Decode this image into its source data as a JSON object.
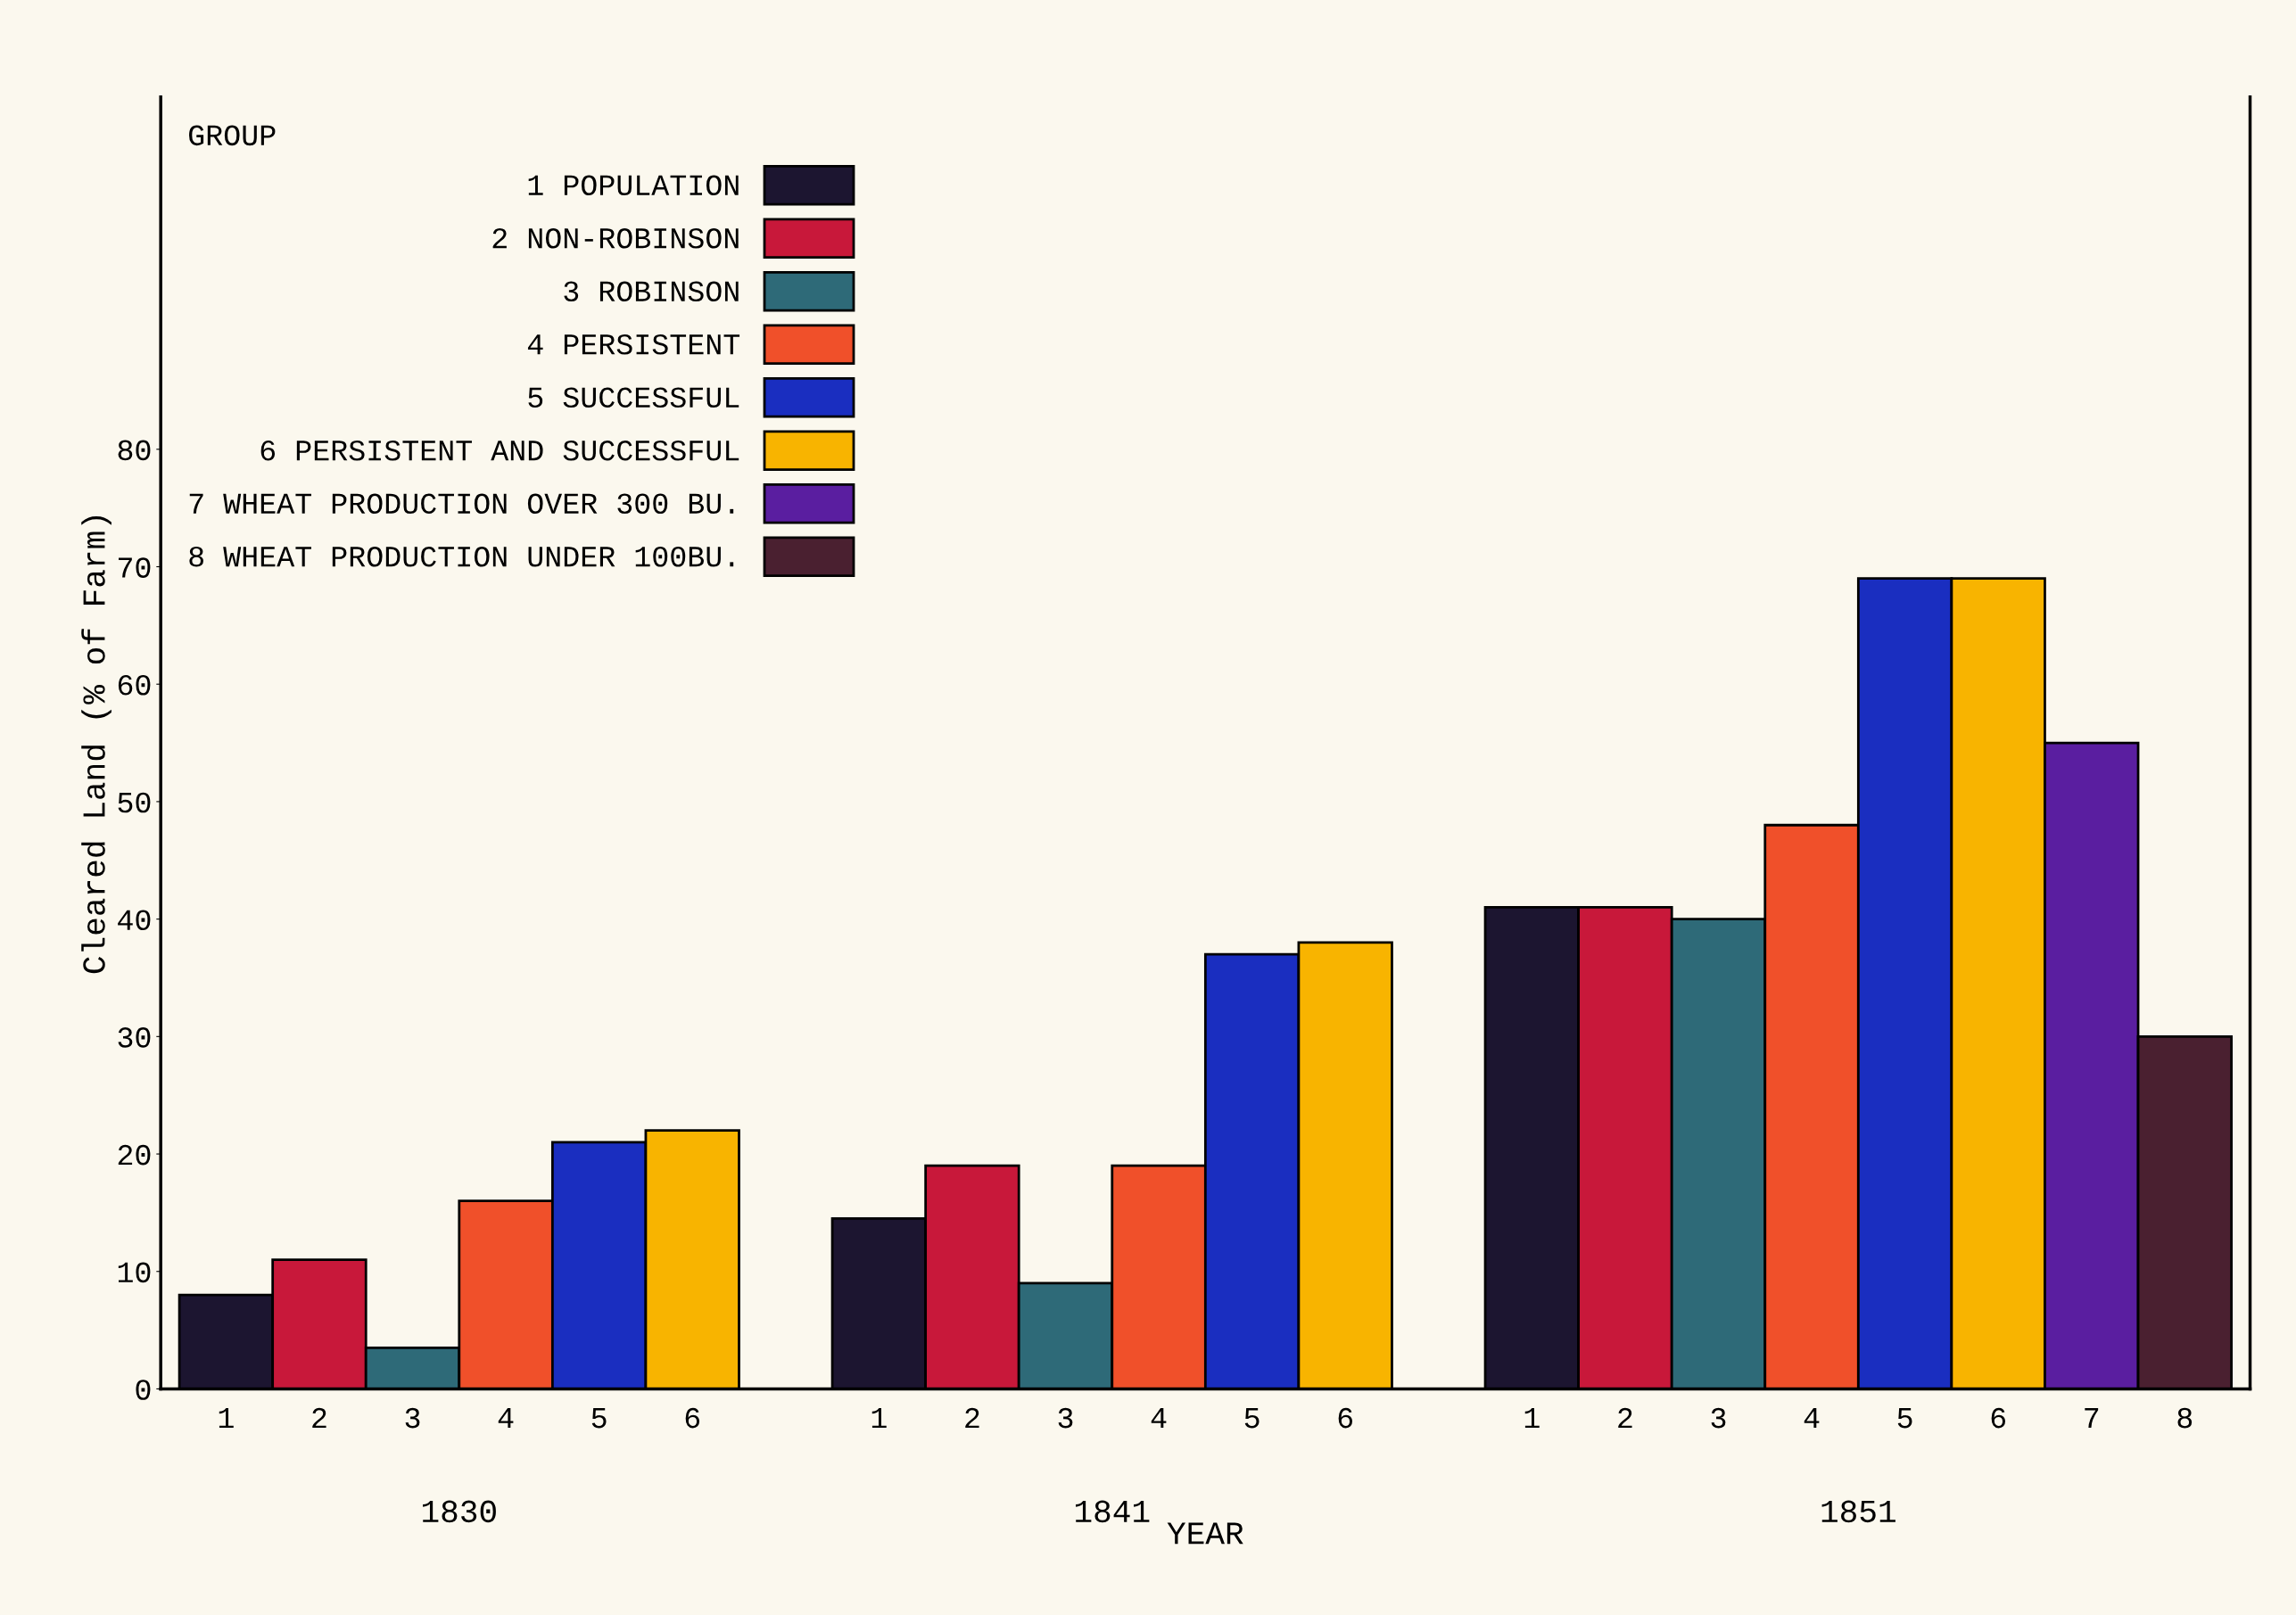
{
  "chart_data": {
    "type": "bar",
    "xlabel": "YEAR",
    "ylabel": "Cleared Land (% of Farm)",
    "legend_title": "GROUP",
    "categories": [
      "1",
      "2",
      "3",
      "4",
      "5",
      "6",
      null,
      "1",
      "2",
      "3",
      "4",
      "5",
      "6",
      null,
      "1",
      "2",
      "3",
      "4",
      "5",
      "6",
      "7",
      "8"
    ],
    "series": [
      {
        "name": "1 POPULATION",
        "color": "#1c1530",
        "values": [
          8,
          null,
          null,
          null,
          null,
          null,
          null,
          14.5,
          null,
          null,
          null,
          null,
          null,
          null,
          41,
          null,
          null,
          null,
          null,
          null,
          null,
          null
        ]
      },
      {
        "name": "2 NON-ROBINSON",
        "color": "#c8183a",
        "values": [
          null,
          11,
          null,
          null,
          null,
          null,
          null,
          null,
          19,
          null,
          null,
          null,
          null,
          null,
          null,
          41,
          null,
          null,
          null,
          null,
          null,
          null
        ]
      },
      {
        "name": "3 ROBINSON",
        "color": "#2e6a78",
        "values": [
          null,
          null,
          3.5,
          null,
          null,
          null,
          null,
          null,
          null,
          9,
          null,
          null,
          null,
          null,
          null,
          null,
          40,
          null,
          null,
          null,
          null,
          null
        ]
      },
      {
        "name": "4 PERSISTENT",
        "color": "#f0502a",
        "values": [
          null,
          null,
          null,
          16,
          null,
          null,
          null,
          null,
          null,
          null,
          19,
          null,
          null,
          null,
          null,
          null,
          null,
          48,
          null,
          null,
          null,
          null
        ]
      },
      {
        "name": "5 SUCCESSFUL",
        "color": "#1a2ec0",
        "values": [
          null,
          null,
          null,
          null,
          21,
          null,
          null,
          null,
          null,
          null,
          null,
          37,
          null,
          null,
          null,
          null,
          null,
          null,
          69,
          null,
          null,
          null
        ]
      },
      {
        "name": "6 PERSISTENT AND SUCCESSFUL",
        "color": "#f8b400",
        "values": [
          null,
          null,
          null,
          null,
          null,
          22,
          null,
          null,
          null,
          null,
          null,
          null,
          38,
          null,
          null,
          null,
          null,
          null,
          null,
          69,
          null,
          null
        ]
      },
      {
        "name": "7 WHEAT PRODUCTION OVER 300 BU.",
        "color": "#5a1ea0",
        "values": [
          null,
          null,
          null,
          null,
          null,
          null,
          null,
          null,
          null,
          null,
          null,
          null,
          null,
          null,
          null,
          null,
          null,
          null,
          null,
          null,
          55,
          null
        ]
      },
      {
        "name": "8 WHEAT PRODUCTION UNDER 100BU.",
        "color": "#4a2030",
        "values": [
          null,
          null,
          null,
          null,
          null,
          null,
          null,
          null,
          null,
          null,
          null,
          null,
          null,
          null,
          null,
          null,
          null,
          null,
          null,
          null,
          null,
          30
        ]
      }
    ],
    "annotations": [
      "1830",
      "1841",
      "1851"
    ],
    "ylim": [
      0,
      110
    ],
    "yticks": [
      0,
      10,
      20,
      30,
      40,
      50,
      60,
      70,
      80
    ],
    "grid": false,
    "legend": "top left"
  }
}
